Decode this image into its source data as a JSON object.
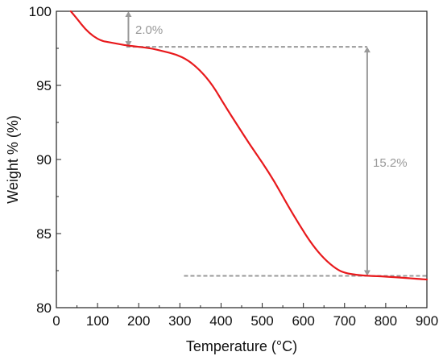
{
  "chart_data": {
    "type": "line",
    "title": "",
    "xlabel": "Temperature (°C)",
    "ylabel": "Weight % (%)",
    "xlim": [
      0,
      900
    ],
    "ylim": [
      80,
      100
    ],
    "x_ticks": [
      "0",
      "100",
      "200",
      "300",
      "400",
      "500",
      "600",
      "700",
      "800",
      "900"
    ],
    "y_ticks": [
      "80",
      "85",
      "90",
      "95",
      "100"
    ],
    "grid": false,
    "series": [
      {
        "color": "#e8191c",
        "points": [
          [
            35,
            100.0
          ],
          [
            50,
            99.5
          ],
          [
            70,
            98.8
          ],
          [
            90,
            98.3
          ],
          [
            110,
            98.0
          ],
          [
            130,
            97.9
          ],
          [
            150,
            97.8
          ],
          [
            170,
            97.7
          ],
          [
            200,
            97.6
          ],
          [
            230,
            97.5
          ],
          [
            260,
            97.3
          ],
          [
            290,
            97.1
          ],
          [
            320,
            96.7
          ],
          [
            350,
            96.0
          ],
          [
            380,
            95.0
          ],
          [
            410,
            93.6
          ],
          [
            440,
            92.3
          ],
          [
            470,
            91.0
          ],
          [
            500,
            89.8
          ],
          [
            530,
            88.5
          ],
          [
            560,
            87.0
          ],
          [
            590,
            85.6
          ],
          [
            620,
            84.3
          ],
          [
            650,
            83.3
          ],
          [
            680,
            82.6
          ],
          [
            700,
            82.35
          ],
          [
            730,
            82.2
          ],
          [
            760,
            82.15
          ],
          [
            800,
            82.1
          ],
          [
            850,
            82.0
          ],
          [
            900,
            81.9
          ]
        ]
      }
    ],
    "annotations": [
      {
        "label": "2.0%",
        "color": "#999999"
      },
      {
        "label": "15.2%",
        "color": "#999999"
      }
    ]
  }
}
